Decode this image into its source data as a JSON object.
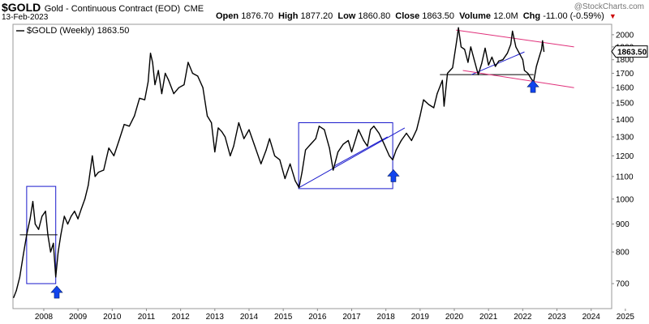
{
  "header": {
    "symbol": "$GOLD",
    "description": "Gold - Continuous Contract (EOD)",
    "exchange": "CME",
    "date": "13-Feb-2023",
    "watermark": "@StockCharts.com",
    "quote": {
      "open_label": "Open",
      "open": "1876.70",
      "high_label": "High",
      "high": "1877.20",
      "low_label": "Low",
      "low": "1860.80",
      "close_label": "Close",
      "close": "1863.50",
      "volume_label": "Volume",
      "volume": "12.0M",
      "chg_label": "Chg",
      "chg": "-11.00 (-0.59%)"
    }
  },
  "colors": {
    "price_line": "#000000",
    "trend_blue": "#1a1acc",
    "channel_pink": "#e0307a",
    "arrow_blue": "#1144ee",
    "grid": "#e6e6e6",
    "arrow_down_red": "#cc0000"
  },
  "chart_data": {
    "type": "line",
    "title": "$GOLD (Weekly) 1863.50",
    "legend": "$GOLD (Weekly) 1863.50",
    "legend_position": "top-left",
    "last_value_label": "1863.50",
    "x_ticks": [
      "2008",
      "2009",
      "2010",
      "2011",
      "2012",
      "2013",
      "2014",
      "2015",
      "2016",
      "2017",
      "2018",
      "2019",
      "2020",
      "2021",
      "2022",
      "2023",
      "2024",
      "2025"
    ],
    "y_ticks": [
      700,
      800,
      900,
      1000,
      1100,
      1200,
      1300,
      1400,
      1500,
      1600,
      1700,
      1800,
      1900,
      2000
    ],
    "xlim": [
      2007.6,
      2025.1
    ],
    "ylim": [
      630,
      2090
    ],
    "y_scale": "log",
    "grid": false,
    "series": [
      {
        "points": [
          [
            2007.62,
            660
          ],
          [
            2007.7,
            680
          ],
          [
            2007.8,
            720
          ],
          [
            2007.9,
            790
          ],
          [
            2008.0,
            860
          ],
          [
            2008.1,
            920
          ],
          [
            2008.18,
            990
          ],
          [
            2008.25,
            900
          ],
          [
            2008.35,
            880
          ],
          [
            2008.45,
            930
          ],
          [
            2008.55,
            950
          ],
          [
            2008.62,
            860
          ],
          [
            2008.7,
            800
          ],
          [
            2008.78,
            830
          ],
          [
            2008.85,
            720
          ],
          [
            2008.92,
            800
          ],
          [
            2009.0,
            860
          ],
          [
            2009.1,
            930
          ],
          [
            2009.2,
            900
          ],
          [
            2009.3,
            930
          ],
          [
            2009.4,
            950
          ],
          [
            2009.5,
            920
          ],
          [
            2009.6,
            960
          ],
          [
            2009.7,
            1000
          ],
          [
            2009.8,
            1060
          ],
          [
            2009.92,
            1200
          ],
          [
            2010.0,
            1100
          ],
          [
            2010.1,
            1120
          ],
          [
            2010.25,
            1130
          ],
          [
            2010.4,
            1240
          ],
          [
            2010.55,
            1200
          ],
          [
            2010.7,
            1280
          ],
          [
            2010.85,
            1370
          ],
          [
            2011.0,
            1360
          ],
          [
            2011.15,
            1420
          ],
          [
            2011.3,
            1530
          ],
          [
            2011.45,
            1520
          ],
          [
            2011.55,
            1640
          ],
          [
            2011.62,
            1850
          ],
          [
            2011.68,
            1780
          ],
          [
            2011.75,
            1620
          ],
          [
            2011.85,
            1720
          ],
          [
            2011.95,
            1560
          ],
          [
            2012.05,
            1700
          ],
          [
            2012.15,
            1650
          ],
          [
            2012.3,
            1560
          ],
          [
            2012.45,
            1600
          ],
          [
            2012.6,
            1620
          ],
          [
            2012.72,
            1780
          ],
          [
            2012.85,
            1700
          ],
          [
            2013.0,
            1680
          ],
          [
            2013.15,
            1600
          ],
          [
            2013.28,
            1420
          ],
          [
            2013.4,
            1380
          ],
          [
            2013.5,
            1220
          ],
          [
            2013.6,
            1350
          ],
          [
            2013.7,
            1330
          ],
          [
            2013.8,
            1300
          ],
          [
            2013.95,
            1200
          ],
          [
            2014.05,
            1250
          ],
          [
            2014.2,
            1380
          ],
          [
            2014.35,
            1290
          ],
          [
            2014.5,
            1340
          ],
          [
            2014.65,
            1260
          ],
          [
            2014.85,
            1160
          ],
          [
            2015.0,
            1230
          ],
          [
            2015.1,
            1290
          ],
          [
            2015.25,
            1200
          ],
          [
            2015.4,
            1180
          ],
          [
            2015.55,
            1090
          ],
          [
            2015.7,
            1160
          ],
          [
            2015.85,
            1080
          ],
          [
            2015.96,
            1050
          ],
          [
            2016.05,
            1120
          ],
          [
            2016.15,
            1230
          ],
          [
            2016.3,
            1260
          ],
          [
            2016.45,
            1290
          ],
          [
            2016.55,
            1360
          ],
          [
            2016.7,
            1340
          ],
          [
            2016.85,
            1240
          ],
          [
            2016.96,
            1130
          ],
          [
            2017.1,
            1220
          ],
          [
            2017.25,
            1260
          ],
          [
            2017.4,
            1280
          ],
          [
            2017.5,
            1220
          ],
          [
            2017.62,
            1290
          ],
          [
            2017.7,
            1340
          ],
          [
            2017.85,
            1280
          ],
          [
            2017.96,
            1250
          ],
          [
            2018.05,
            1340
          ],
          [
            2018.15,
            1360
          ],
          [
            2018.3,
            1320
          ],
          [
            2018.45,
            1260
          ],
          [
            2018.6,
            1200
          ],
          [
            2018.7,
            1180
          ],
          [
            2018.8,
            1230
          ],
          [
            2018.95,
            1280
          ],
          [
            2019.1,
            1320
          ],
          [
            2019.25,
            1280
          ],
          [
            2019.4,
            1340
          ],
          [
            2019.5,
            1420
          ],
          [
            2019.6,
            1520
          ],
          [
            2019.75,
            1490
          ],
          [
            2019.9,
            1470
          ],
          [
            2020.0,
            1560
          ],
          [
            2020.15,
            1650
          ],
          [
            2020.2,
            1480
          ],
          [
            2020.3,
            1700
          ],
          [
            2020.45,
            1740
          ],
          [
            2020.58,
            1970
          ],
          [
            2020.62,
            2060
          ],
          [
            2020.7,
            1900
          ],
          [
            2020.8,
            1880
          ],
          [
            2020.9,
            1780
          ],
          [
            2020.98,
            1900
          ],
          [
            2021.08,
            1800
          ],
          [
            2021.2,
            1690
          ],
          [
            2021.3,
            1770
          ],
          [
            2021.4,
            1890
          ],
          [
            2021.5,
            1760
          ],
          [
            2021.6,
            1820
          ],
          [
            2021.7,
            1750
          ],
          [
            2021.8,
            1790
          ],
          [
            2021.92,
            1800
          ],
          [
            2022.05,
            1850
          ],
          [
            2022.15,
            1920
          ],
          [
            2022.2,
            2030
          ],
          [
            2022.3,
            1900
          ],
          [
            2022.4,
            1850
          ],
          [
            2022.5,
            1800
          ],
          [
            2022.55,
            1720
          ],
          [
            2022.65,
            1700
          ],
          [
            2022.75,
            1660
          ],
          [
            2022.82,
            1640
          ],
          [
            2022.9,
            1750
          ],
          [
            2022.98,
            1820
          ],
          [
            2023.05,
            1880
          ],
          [
            2023.08,
            1950
          ],
          [
            2023.12,
            1863.5
          ]
        ]
      }
    ],
    "annotations": {
      "boxes": [
        {
          "x1": 2008.0,
          "x2": 2008.85,
          "y1": 700,
          "y2": 1055
        },
        {
          "x1": 2015.95,
          "x2": 2018.7,
          "y1": 1045,
          "y2": 1380
        }
      ],
      "horizontal_lines": [
        {
          "x1": 2007.8,
          "x2": 2008.9,
          "y": 860
        },
        {
          "x1": 2020.08,
          "x2": 2022.82,
          "y": 1690
        }
      ],
      "blue_trendlines": [
        {
          "x1": 2015.97,
          "x2": 2019.05,
          "y1": 1050,
          "y2": 1350
        },
        {
          "x1": 2017.0,
          "x2": 2018.55,
          "y1": 1150,
          "y2": 1300
        },
        {
          "x1": 2021.0,
          "x2": 2022.55,
          "y1": 1690,
          "y2": 1860
        }
      ],
      "pink_trendlines": [
        {
          "x1": 2020.55,
          "x2": 2024.0,
          "y1": 2040,
          "y2": 1900
        },
        {
          "x1": 2020.75,
          "x2": 2024.0,
          "y1": 1720,
          "y2": 1600
        }
      ],
      "up_arrows": [
        {
          "x": 2008.88,
          "y": 672
        },
        {
          "x": 2018.72,
          "y": 1098
        },
        {
          "x": 2022.8,
          "y": 1600
        }
      ]
    }
  }
}
